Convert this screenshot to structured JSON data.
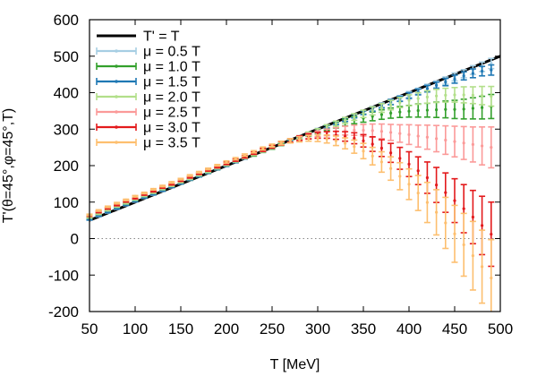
{
  "chart_data": {
    "type": "line",
    "xlabel": "T [MeV]",
    "ylabel": "T'(θ=45°,φ=45°,T)",
    "xlim": [
      50,
      500
    ],
    "ylim": [
      -200,
      600
    ],
    "xticks": [
      50,
      100,
      150,
      200,
      250,
      300,
      350,
      400,
      450,
      500
    ],
    "yticks": [
      -200,
      -100,
      0,
      100,
      200,
      300,
      400,
      500,
      600
    ],
    "zero_line": "dotted",
    "grid": false,
    "legend_position": "top-left",
    "reference": {
      "name": "T' = T",
      "color": "#000000",
      "x": [
        50,
        500
      ],
      "y": [
        50,
        500
      ]
    },
    "x": [
      50,
      60,
      70,
      80,
      90,
      100,
      110,
      120,
      130,
      140,
      150,
      160,
      170,
      180,
      190,
      200,
      210,
      220,
      230,
      240,
      250,
      260,
      270,
      280,
      290,
      300,
      310,
      320,
      330,
      340,
      350,
      360,
      370,
      380,
      390,
      400,
      410,
      420,
      430,
      440,
      450,
      460,
      470,
      480,
      490
    ],
    "series": [
      {
        "name": "μ = 0.5 T",
        "color": "#a6cee3",
        "y": [
          52,
          62,
          72,
          82,
          92,
          102,
          112,
          121,
          131,
          141,
          151,
          161,
          171,
          180,
          190,
          200,
          210,
          220,
          229,
          239,
          249,
          259,
          268,
          278,
          288,
          298,
          307,
          317,
          327,
          337,
          346,
          356,
          366,
          375,
          385,
          395,
          404,
          414,
          423,
          433,
          443,
          452,
          462,
          471,
          480
        ],
        "err": [
          2,
          2,
          2,
          2,
          2,
          2,
          2,
          2,
          2,
          2,
          2,
          2,
          2,
          2,
          2,
          2,
          2,
          2,
          2,
          2,
          2,
          3,
          3,
          3,
          3,
          4,
          4,
          4,
          5,
          5,
          5,
          6,
          6,
          7,
          7,
          8,
          8,
          9,
          9,
          10,
          11,
          11,
          12,
          13,
          14
        ]
      },
      {
        "name": "μ = 1.0 T",
        "color": "#33a02c",
        "y": [
          55,
          65,
          75,
          85,
          94,
          104,
          114,
          123,
          133,
          143,
          152,
          162,
          172,
          181,
          191,
          200,
          210,
          220,
          229,
          239,
          248,
          258,
          267,
          276,
          286,
          295,
          303,
          311,
          318,
          325,
          330,
          335,
          340,
          344,
          347,
          349,
          351,
          352,
          353,
          354,
          354,
          355,
          357,
          359,
          362
        ],
        "err": [
          2,
          2,
          2,
          2,
          2,
          2,
          2,
          2,
          2,
          2,
          2,
          2,
          2,
          2,
          2,
          2,
          2,
          2,
          3,
          3,
          3,
          3,
          4,
          4,
          5,
          6,
          7,
          8,
          9,
          10,
          11,
          12,
          13,
          14,
          15,
          16,
          18,
          19,
          21,
          23,
          25,
          27,
          29,
          31,
          33
        ]
      },
      {
        "name": "μ = 1.5 T",
        "color": "#1f78b4",
        "y": [
          53,
          63,
          73,
          83,
          93,
          103,
          113,
          122,
          132,
          142,
          152,
          162,
          171,
          181,
          191,
          200,
          210,
          220,
          230,
          239,
          249,
          259,
          268,
          278,
          288,
          297,
          307,
          317,
          326,
          336,
          345,
          355,
          364,
          374,
          383,
          392,
          402,
          411,
          420,
          429,
          437,
          446,
          453,
          459,
          462
        ],
        "err": [
          2,
          2,
          2,
          2,
          2,
          2,
          2,
          2,
          2,
          2,
          2,
          2,
          2,
          2,
          2,
          2,
          2,
          2,
          2,
          2,
          2,
          3,
          3,
          3,
          3,
          4,
          4,
          4,
          5,
          5,
          5,
          6,
          6,
          7,
          7,
          8,
          8,
          9,
          9,
          10,
          11,
          11,
          12,
          13,
          14
        ]
      },
      {
        "name": "μ = 2.0 T",
        "color": "#b2df8a",
        "y": [
          58,
          68,
          78,
          88,
          97,
          107,
          117,
          126,
          136,
          145,
          155,
          164,
          174,
          183,
          193,
          202,
          212,
          221,
          231,
          240,
          250,
          259,
          268,
          278,
          287,
          296,
          306,
          315,
          324,
          333,
          342,
          350,
          358,
          366,
          373,
          379,
          384,
          388,
          391,
          393,
          394,
          394,
          393,
          392,
          390
        ],
        "err": [
          2,
          2,
          2,
          2,
          2,
          2,
          2,
          2,
          2,
          2,
          2,
          2,
          2,
          2,
          2,
          2,
          2,
          2,
          3,
          3,
          3,
          3,
          4,
          4,
          5,
          5,
          6,
          7,
          8,
          9,
          10,
          11,
          12,
          13,
          14,
          15,
          16,
          17,
          18,
          19,
          20,
          22,
          23,
          25,
          27
        ]
      },
      {
        "name": "μ = 2.5 T",
        "color": "#fb9a99",
        "y": [
          63,
          73,
          83,
          92,
          102,
          111,
          121,
          130,
          140,
          149,
          159,
          168,
          178,
          187,
          196,
          206,
          215,
          224,
          234,
          243,
          252,
          261,
          269,
          276,
          282,
          287,
          291,
          294,
          296,
          297,
          297,
          296,
          294,
          291,
          288,
          285,
          281,
          278,
          274,
          270,
          266,
          262,
          258,
          254,
          250
        ],
        "err": [
          2,
          2,
          2,
          2,
          2,
          2,
          2,
          2,
          2,
          2,
          2,
          2,
          2,
          2,
          2,
          3,
          3,
          3,
          3,
          4,
          4,
          5,
          5,
          6,
          7,
          8,
          9,
          10,
          12,
          14,
          16,
          18,
          20,
          22,
          24,
          27,
          30,
          33,
          36,
          39,
          42,
          45,
          48,
          52,
          56
        ]
      },
      {
        "name": "μ = 3.0 T",
        "color": "#e31a1c",
        "y": [
          63,
          73,
          83,
          92,
          102,
          111,
          121,
          130,
          140,
          149,
          159,
          168,
          178,
          187,
          196,
          206,
          215,
          224,
          234,
          243,
          252,
          261,
          269,
          275,
          280,
          283,
          284,
          283,
          280,
          275,
          268,
          259,
          248,
          235,
          220,
          204,
          186,
          167,
          147,
          126,
          104,
          82,
          59,
          36,
          12
        ],
        "err": [
          2,
          2,
          2,
          2,
          2,
          2,
          2,
          2,
          2,
          2,
          2,
          2,
          2,
          2,
          2,
          3,
          3,
          3,
          3,
          4,
          4,
          5,
          5,
          6,
          7,
          8,
          9,
          11,
          13,
          15,
          17,
          20,
          23,
          26,
          30,
          34,
          38,
          43,
          48,
          54,
          60,
          66,
          73,
          80,
          88
        ]
      },
      {
        "name": "μ = 3.5 T",
        "color": "#fdbf6f",
        "y": [
          65,
          77,
          87,
          97,
          106,
          116,
          125,
          135,
          144,
          154,
          163,
          173,
          182,
          191,
          201,
          210,
          219,
          229,
          238,
          247,
          255,
          262,
          268,
          272,
          275,
          275,
          273,
          268,
          261,
          252,
          240,
          226,
          210,
          192,
          171,
          149,
          125,
          99,
          72,
          43,
          13,
          -17,
          -47,
          -77,
          -108
        ],
        "err": [
          2,
          2,
          2,
          2,
          2,
          2,
          2,
          2,
          2,
          2,
          2,
          2,
          2,
          2,
          2,
          3,
          3,
          3,
          3,
          4,
          4,
          5,
          6,
          7,
          8,
          9,
          11,
          13,
          15,
          18,
          21,
          24,
          28,
          32,
          37,
          42,
          48,
          55,
          62,
          70,
          78,
          86,
          94,
          100,
          105
        ]
      }
    ]
  }
}
